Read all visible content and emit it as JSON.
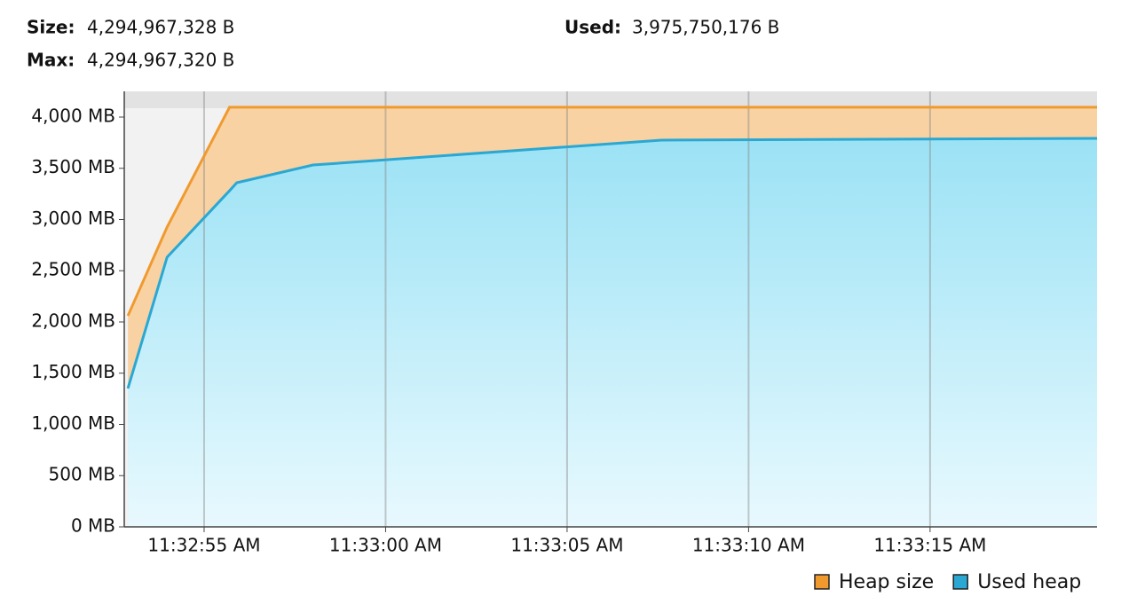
{
  "header": {
    "size_label": "Size:",
    "size_value": "4,294,967,328 B",
    "used_label": "Used:",
    "used_value": "3,975,750,176 B",
    "max_label": "Max:",
    "max_value": "4,294,967,320 B"
  },
  "chart_data": {
    "type": "area",
    "x": [
      41572.9,
      41573.98,
      41575.7,
      41575.9,
      41578.0,
      41587.6,
      41599.6
    ],
    "series": [
      {
        "name": "Heap size",
        "color": "#f09a2e",
        "values": [
          2060,
          2926,
          4096,
          4096,
          4096,
          4096,
          4096
        ]
      },
      {
        "name": "Used heap",
        "color": "#2aa8d3",
        "values": [
          1351,
          2632,
          3281,
          3359,
          3532,
          3775,
          3792
        ]
      }
    ],
    "xlim": [
      41572.8,
      41599.6
    ],
    "xticks": [
      {
        "value": 41575,
        "label": "11:32:55 AM"
      },
      {
        "value": 41580,
        "label": "11:33:00 AM"
      },
      {
        "value": 41585,
        "label": "11:33:05 AM"
      },
      {
        "value": 41590,
        "label": "11:33:10 AM"
      },
      {
        "value": 41595,
        "label": "11:33:15 AM"
      }
    ],
    "ylim": [
      0,
      4251
    ],
    "yticks": [
      {
        "value": 0,
        "label": "0 MB"
      },
      {
        "value": 500,
        "label": "500 MB"
      },
      {
        "value": 1000,
        "label": "1,000 MB"
      },
      {
        "value": 1500,
        "label": "1,500 MB"
      },
      {
        "value": 2000,
        "label": "2,000 MB"
      },
      {
        "value": 2500,
        "label": "2,500 MB"
      },
      {
        "value": 3000,
        "label": "3,000 MB"
      },
      {
        "value": 3500,
        "label": "3,500 MB"
      },
      {
        "value": 4000,
        "label": "4,000 MB"
      }
    ],
    "grid": true
  }
}
